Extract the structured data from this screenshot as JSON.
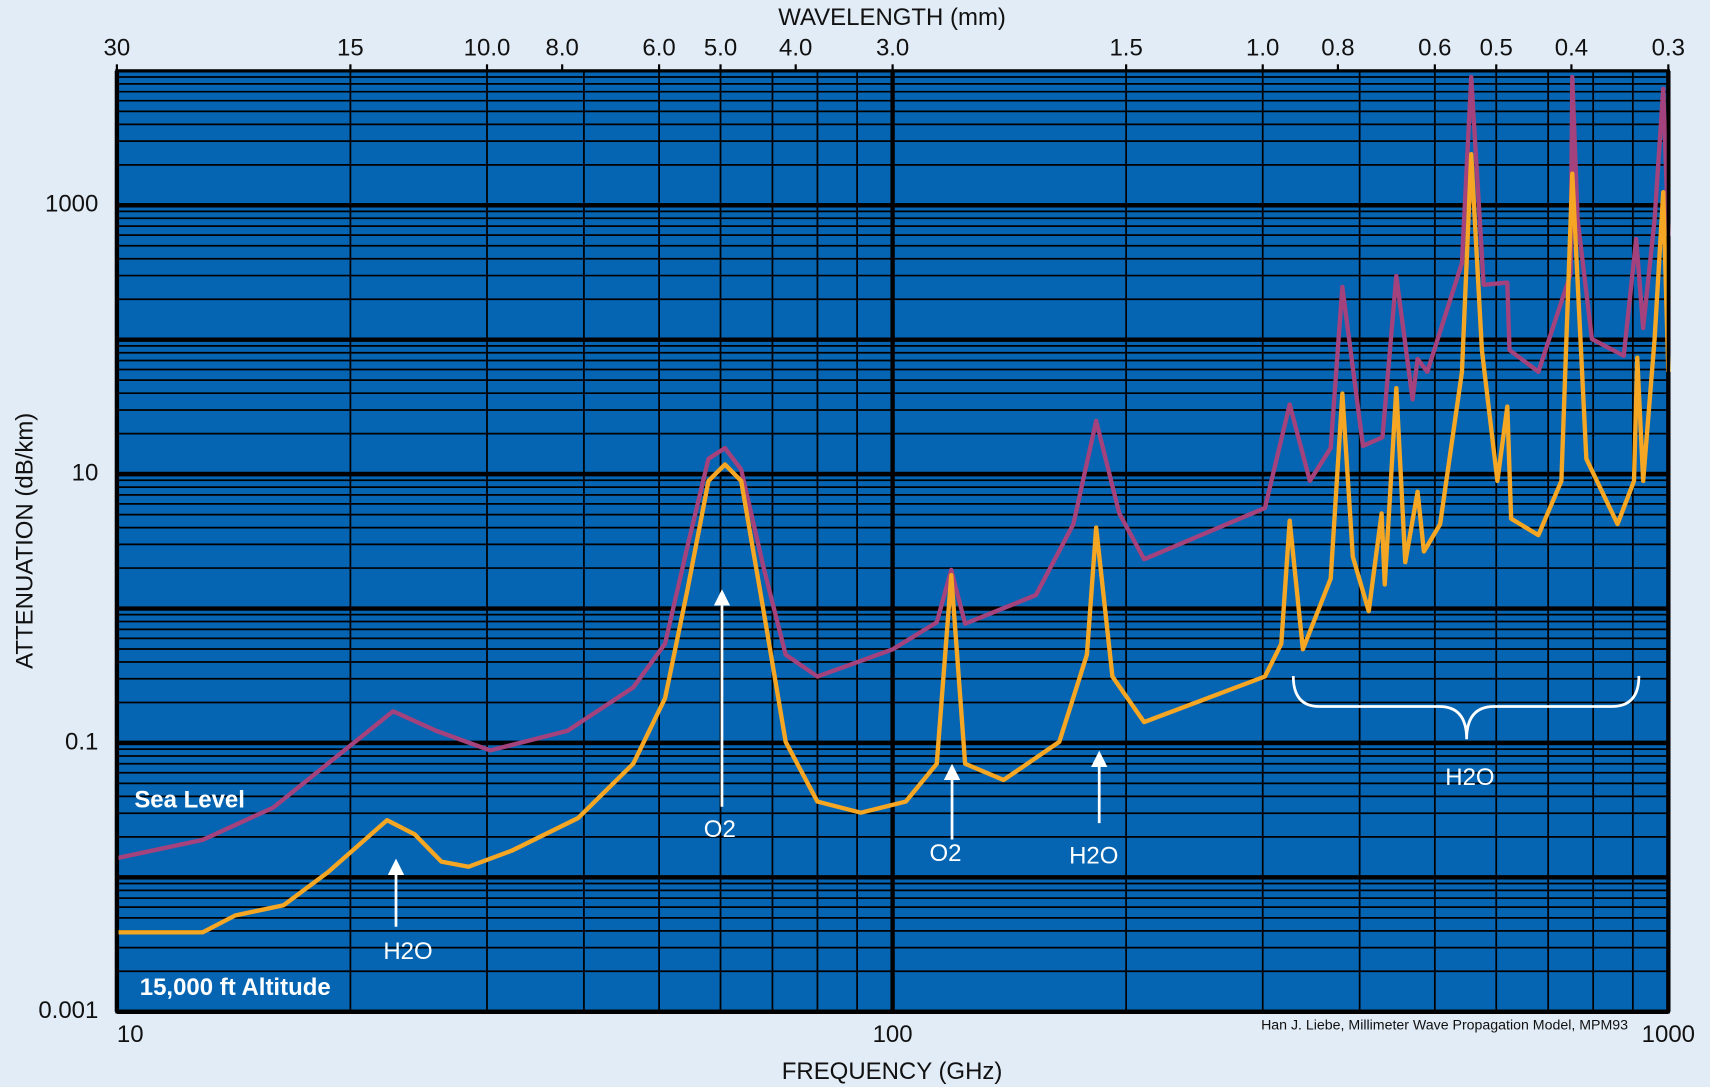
{
  "chart_data": {
    "type": "line",
    "xlabel": "FREQUENCY (GHz)",
    "ylabel": "ATTENUATION  (dB/km)",
    "x2label": "WAVELENGTH  (mm)",
    "xscale": "log",
    "yscale": "log",
    "grid": true,
    "xlim": [
      10,
      1000
    ],
    "ylim": [
      0.001,
      10000
    ],
    "xticks": [
      10,
      100,
      1000
    ],
    "yticks": [
      0.001,
      0.1,
      10,
      1000
    ],
    "x2ticks": [
      {
        "value": 10,
        "label": "30"
      },
      {
        "value": 20,
        "label": "15"
      },
      {
        "value": 30,
        "label": "10.0"
      },
      {
        "value": 37.5,
        "label": "8.0"
      },
      {
        "value": 50,
        "label": "6.0"
      },
      {
        "value": 60,
        "label": "5.0"
      },
      {
        "value": 75,
        "label": "4.0"
      },
      {
        "value": 100,
        "label": "3.0"
      },
      {
        "value": 200,
        "label": "1.5"
      },
      {
        "value": 300,
        "label": "1.0"
      },
      {
        "value": 375,
        "label": "0.8"
      },
      {
        "value": 500,
        "label": "0.6"
      },
      {
        "value": 600,
        "label": "0.5"
      },
      {
        "value": 750,
        "label": "0.4"
      },
      {
        "value": 1000,
        "label": "0.3"
      }
    ],
    "annotations": [
      "H2O",
      "O2",
      "O2",
      "H2O",
      "H2O"
    ],
    "credit": "Han J. Liebe, Millimeter Wave Propagation Model, MPM93",
    "series": [
      {
        "name": "Sea Level",
        "color": "#a3427c",
        "x": [
          10,
          12.9,
          15.9,
          18.7,
          22.7,
          25.8,
          30.3,
          38.1,
          46.3,
          50.9,
          54.4,
          57.9,
          60.8,
          63.8,
          68.2,
          72.8,
          80,
          100,
          114,
          119,
          124,
          153,
          171,
          183,
          196,
          211,
          302,
          325,
          345,
          367,
          380,
          404,
          428,
          446,
          468,
          475,
          489,
          542,
          557,
          578,
          620,
          624,
          680,
          748,
          752,
          764,
          797,
          876,
          909,
          928,
          960,
          985,
          1000
        ],
        "values": [
          0.0139,
          0.019,
          0.033,
          0.07,
          0.172,
          0.123,
          0.088,
          0.123,
          0.259,
          0.547,
          2.92,
          13,
          15.6,
          10.8,
          2.01,
          0.453,
          0.312,
          0.497,
          0.79,
          1.94,
          0.77,
          1.26,
          4.25,
          24.9,
          5.1,
          2.33,
          5.6,
          33,
          8.9,
          15.6,
          247,
          16.2,
          18.8,
          298,
          36,
          72,
          57.7,
          372,
          9000,
          256,
          266,
          83.8,
          57.7,
          309,
          9000,
          785,
          101,
          76,
          561,
          122,
          785,
          7350,
          593
        ]
      },
      {
        "name": "15,000 ft Altitude",
        "color": "#f5a623",
        "x": [
          10,
          12.9,
          14.2,
          16.4,
          18.7,
          22.3,
          24.2,
          26.2,
          28.4,
          32.3,
          39.3,
          46.3,
          50.9,
          54.4,
          57.9,
          60.8,
          63.8,
          68.2,
          72.8,
          80,
          91,
          104,
          114,
          119,
          124,
          139,
          164,
          178,
          183,
          192,
          211,
          302,
          317,
          325,
          338,
          367,
          380,
          392,
          411,
          427,
          431,
          446,
          458,
          475,
          484,
          508,
          542,
          557,
          575,
          602,
          620,
          627,
          680,
          728,
          752,
          784,
          860,
          903,
          912,
          928,
          960,
          985,
          1000
        ],
        "values": [
          0.0039,
          0.0039,
          0.0052,
          0.0062,
          0.0109,
          0.0266,
          0.0209,
          0.0131,
          0.012,
          0.0158,
          0.0276,
          0.07,
          0.215,
          1.39,
          8.9,
          11.8,
          8.9,
          0.955,
          0.102,
          0.0366,
          0.0303,
          0.0366,
          0.07,
          1.77,
          0.07,
          0.053,
          0.102,
          0.453,
          4,
          0.312,
          0.143,
          0.312,
          0.547,
          4.5,
          0.497,
          1.67,
          39.7,
          2.43,
          0.955,
          5.1,
          1.51,
          43.6,
          2.21,
          7.4,
          2.66,
          4.25,
          57.7,
          2400,
          83.8,
          8.9,
          31.8,
          4.66,
          3.52,
          8.9,
          1718,
          13,
          4.25,
          8.9,
          73.5,
          8.9,
          101,
          1250,
          57.7
        ]
      }
    ]
  }
}
